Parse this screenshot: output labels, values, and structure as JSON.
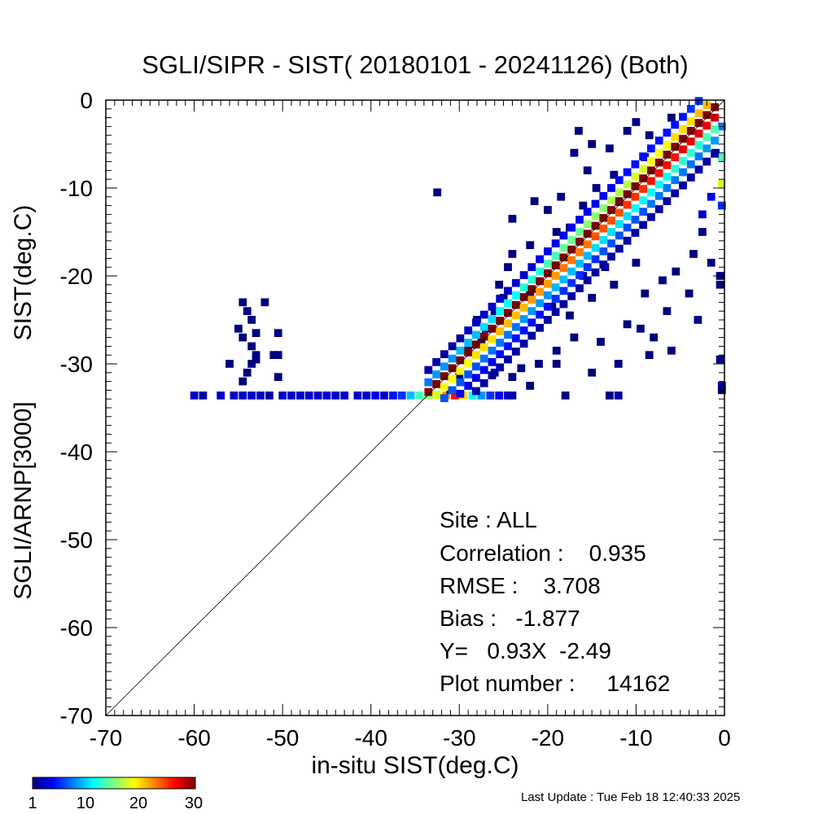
{
  "chart_data": {
    "type": "heatmap",
    "title": "SGLI/SIPR - SIST( 20180101 - 20241126) (Both)",
    "xlabel": "in-situ SIST(deg.C)",
    "ylabel_lines": [
      "SGLI/ARNP[3000]",
      "SIST(deg.C)"
    ],
    "xlim": [
      -70,
      0
    ],
    "ylim": [
      -70,
      0
    ],
    "x_ticks": [
      -70,
      -60,
      -50,
      -40,
      -30,
      -20,
      -10,
      0
    ],
    "y_ticks": [
      -70,
      -60,
      -50,
      -40,
      -30,
      -20,
      -10,
      0
    ],
    "x_tick_labels": [
      "-70",
      "-60",
      "-50",
      "-40",
      "-30",
      "-20",
      "-10",
      "0"
    ],
    "y_tick_labels": [
      "-70",
      "-60",
      "-50",
      "-40",
      "-30",
      "-20",
      "-10",
      "0"
    ],
    "reference_line": "y = x",
    "colorbar": {
      "min": 1,
      "max": 30,
      "ticks": [
        "1",
        "10",
        "20",
        "30"
      ],
      "colors": [
        "#00007f",
        "#0000ff",
        "#007fff",
        "#00ffff",
        "#7fff7f",
        "#ffff00",
        "#ff7f00",
        "#ff0000",
        "#7f0000"
      ]
    },
    "density_cells": [
      {
        "x": -60.0,
        "y": -33.6,
        "count": 3
      },
      {
        "x": -59.0,
        "y": -33.6,
        "count": 2
      },
      {
        "x": -57.0,
        "y": -33.6,
        "count": 3
      },
      {
        "x": -55.5,
        "y": -33.6,
        "count": 3
      },
      {
        "x": -54.5,
        "y": -33.6,
        "count": 3
      },
      {
        "x": -53.5,
        "y": -33.6,
        "count": 3
      },
      {
        "x": -52.5,
        "y": -33.6,
        "count": 3
      },
      {
        "x": -51.5,
        "y": -33.6,
        "count": 2
      },
      {
        "x": -50.0,
        "y": -33.6,
        "count": 3
      },
      {
        "x": -49.0,
        "y": -33.6,
        "count": 3
      },
      {
        "x": -48.0,
        "y": -33.6,
        "count": 3
      },
      {
        "x": -47.0,
        "y": -33.6,
        "count": 3
      },
      {
        "x": -46.0,
        "y": -33.6,
        "count": 3
      },
      {
        "x": -45.0,
        "y": -33.6,
        "count": 4
      },
      {
        "x": -44.0,
        "y": -33.6,
        "count": 3
      },
      {
        "x": -43.0,
        "y": -33.6,
        "count": 3
      },
      {
        "x": -41.5,
        "y": -33.6,
        "count": 3
      },
      {
        "x": -40.5,
        "y": -33.6,
        "count": 3
      },
      {
        "x": -39.5,
        "y": -33.6,
        "count": 4
      },
      {
        "x": -38.5,
        "y": -33.6,
        "count": 3
      },
      {
        "x": -37.5,
        "y": -33.6,
        "count": 5
      },
      {
        "x": -36.5,
        "y": -33.6,
        "count": 6
      },
      {
        "x": -35.5,
        "y": -33.6,
        "count": 10
      },
      {
        "x": -34.5,
        "y": -33.6,
        "count": 14
      },
      {
        "x": -33.5,
        "y": -33.6,
        "count": 16
      },
      {
        "x": -32.5,
        "y": -33.6,
        "count": 19
      },
      {
        "x": -31.5,
        "y": -33.6,
        "count": 22
      },
      {
        "x": -30.5,
        "y": -33.6,
        "count": 26
      },
      {
        "x": -29.5,
        "y": -33.6,
        "count": 20
      },
      {
        "x": -28.5,
        "y": -33.6,
        "count": 12
      },
      {
        "x": -27.5,
        "y": -33.6,
        "count": 9
      },
      {
        "x": -26.5,
        "y": -33.6,
        "count": 6
      },
      {
        "x": -25.5,
        "y": -33.6,
        "count": 4
      },
      {
        "x": -24.5,
        "y": -33.6,
        "count": 3
      },
      {
        "x": -24.0,
        "y": -33.6,
        "count": 2
      },
      {
        "x": -18.0,
        "y": -33.6,
        "count": 1
      },
      {
        "x": -13.0,
        "y": -33.6,
        "count": 1
      },
      {
        "x": -12.0,
        "y": -33.6,
        "count": 2
      },
      {
        "x": -54.5,
        "y": -23.0,
        "count": 1
      },
      {
        "x": -52.0,
        "y": -23.0,
        "count": 1
      },
      {
        "x": -54.0,
        "y": -24.0,
        "count": 1
      },
      {
        "x": -53.5,
        "y": -25.0,
        "count": 1
      },
      {
        "x": -55.0,
        "y": -26.0,
        "count": 1
      },
      {
        "x": -53.0,
        "y": -26.5,
        "count": 1
      },
      {
        "x": -54.5,
        "y": -27.0,
        "count": 1
      },
      {
        "x": -50.5,
        "y": -26.5,
        "count": 1
      },
      {
        "x": -53.5,
        "y": -28.0,
        "count": 1
      },
      {
        "x": -53.0,
        "y": -29.0,
        "count": 1
      },
      {
        "x": -51.0,
        "y": -29.0,
        "count": 1
      },
      {
        "x": -50.5,
        "y": -29.0,
        "count": 1
      },
      {
        "x": -56.0,
        "y": -30.0,
        "count": 1
      },
      {
        "x": -53.5,
        "y": -30.0,
        "count": 1
      },
      {
        "x": -53.0,
        "y": -29.5,
        "count": 1
      },
      {
        "x": -54.0,
        "y": -31.0,
        "count": 1
      },
      {
        "x": -50.5,
        "y": -31.5,
        "count": 1
      },
      {
        "x": -54.5,
        "y": -32.0,
        "count": 1
      },
      {
        "x": -32.5,
        "y": -10.5,
        "count": 1
      },
      {
        "x": -16.5,
        "y": -3.5,
        "count": 1
      },
      {
        "x": -21.5,
        "y": -11.5,
        "count": 1
      },
      {
        "x": -24.0,
        "y": -13.5,
        "count": 1
      },
      {
        "x": -22.0,
        "y": -16.5,
        "count": 1
      },
      {
        "x": -24.0,
        "y": -17.5,
        "count": 1
      },
      {
        "x": -24.5,
        "y": -19.0,
        "count": 1
      },
      {
        "x": -25.5,
        "y": -21.0,
        "count": 1
      },
      {
        "x": -22.0,
        "y": -22.0,
        "count": 1
      },
      {
        "x": -20.0,
        "y": -12.5,
        "count": 1
      },
      {
        "x": -18.5,
        "y": -11.0,
        "count": 1
      },
      {
        "x": -19.0,
        "y": -15.0,
        "count": 1
      },
      {
        "x": -15.0,
        "y": -5.0,
        "count": 1
      },
      {
        "x": -15.5,
        "y": -8.0,
        "count": 1
      },
      {
        "x": -13.0,
        "y": -5.5,
        "count": 1
      },
      {
        "x": -12.5,
        "y": -8.5,
        "count": 1
      },
      {
        "x": -11.0,
        "y": -3.5,
        "count": 1
      },
      {
        "x": -10.0,
        "y": -2.5,
        "count": 1
      },
      {
        "x": -17.0,
        "y": -6.0,
        "count": 1
      },
      {
        "x": -14.5,
        "y": -10.0,
        "count": 1
      },
      {
        "x": -16.0,
        "y": -12.0,
        "count": 1
      },
      {
        "x": -17.5,
        "y": -14.5,
        "count": 1
      },
      {
        "x": -12.0,
        "y": -11.5,
        "count": 1
      },
      {
        "x": -8.5,
        "y": -4.0,
        "count": 1
      },
      {
        "x": -6.0,
        "y": -2.0,
        "count": 1
      },
      {
        "x": -9.0,
        "y": -6.5,
        "count": 1
      },
      {
        "x": -28.0,
        "y": -25.0,
        "count": 1
      },
      {
        "x": -26.0,
        "y": -24.0,
        "count": 1
      },
      {
        "x": -27.5,
        "y": -27.5,
        "count": 1
      },
      {
        "x": -29.0,
        "y": -28.5,
        "count": 1
      },
      {
        "x": -30.0,
        "y": -31.5,
        "count": 1
      },
      {
        "x": -31.0,
        "y": -33.0,
        "count": 1
      },
      {
        "x": -26.0,
        "y": -31.0,
        "count": 2
      },
      {
        "x": -24.0,
        "y": -31.5,
        "count": 1
      },
      {
        "x": -22.0,
        "y": -32.5,
        "count": 1
      },
      {
        "x": -21.0,
        "y": -30.0,
        "count": 1
      },
      {
        "x": -23.0,
        "y": -30.5,
        "count": 1
      },
      {
        "x": -19.0,
        "y": -28.5,
        "count": 1
      },
      {
        "x": -17.0,
        "y": -27.0,
        "count": 1
      },
      {
        "x": -14.0,
        "y": -27.5,
        "count": 1
      },
      {
        "x": -11.0,
        "y": -25.5,
        "count": 1
      },
      {
        "x": -9.5,
        "y": -26.0,
        "count": 1
      },
      {
        "x": -8.0,
        "y": -27.0,
        "count": 1
      },
      {
        "x": -6.5,
        "y": -24.0,
        "count": 1
      },
      {
        "x": -9.0,
        "y": -22.0,
        "count": 1
      },
      {
        "x": -12.5,
        "y": -21.0,
        "count": 1
      },
      {
        "x": -15.0,
        "y": -22.5,
        "count": 1
      },
      {
        "x": -17.5,
        "y": -24.5,
        "count": 1
      },
      {
        "x": -19.5,
        "y": -23.5,
        "count": 1
      },
      {
        "x": -16.0,
        "y": -20.0,
        "count": 2
      },
      {
        "x": -13.5,
        "y": -19.0,
        "count": 1
      },
      {
        "x": -10.0,
        "y": -18.5,
        "count": 1
      },
      {
        "x": -7.0,
        "y": -20.5,
        "count": 1
      },
      {
        "x": -5.5,
        "y": -19.5,
        "count": 1
      },
      {
        "x": -4.0,
        "y": -22.0,
        "count": 1
      },
      {
        "x": -3.0,
        "y": -25.0,
        "count": 1
      },
      {
        "x": -3.5,
        "y": -17.5,
        "count": 1
      },
      {
        "x": -2.5,
        "y": -15.0,
        "count": 1
      },
      {
        "x": -1.5,
        "y": -18.5,
        "count": 1
      },
      {
        "x": -0.5,
        "y": -20.0,
        "count": 1
      },
      {
        "x": -0.5,
        "y": -21.0,
        "count": 1
      },
      {
        "x": -0.5,
        "y": -29.5,
        "count": 1
      },
      {
        "x": -0.3,
        "y": -32.5,
        "count": 2
      },
      {
        "x": -0.3,
        "y": -33.0,
        "count": 1
      },
      {
        "x": -15.0,
        "y": -31.0,
        "count": 1
      },
      {
        "x": -12.0,
        "y": -30.0,
        "count": 1
      },
      {
        "x": -8.5,
        "y": -29.0,
        "count": 1
      },
      {
        "x": -6.0,
        "y": -28.5,
        "count": 1
      },
      {
        "x": -19.0,
        "y": -30.0,
        "count": 1
      },
      {
        "x": -25.0,
        "y": -22.5,
        "count": 1
      },
      {
        "x": -27.0,
        "y": -26.0,
        "count": 2
      },
      {
        "x": -1.0,
        "y": -6.0,
        "count": 3
      },
      {
        "x": -0.3,
        "y": -3.0,
        "count": 8
      },
      {
        "x": -0.3,
        "y": -6.5,
        "count": 14
      },
      {
        "x": -0.3,
        "y": -9.5,
        "count": 18
      },
      {
        "x": -0.3,
        "y": -12.0,
        "count": 6
      },
      {
        "x": -1.5,
        "y": -11.0,
        "count": 4
      },
      {
        "x": -2.5,
        "y": -13.0,
        "count": 3
      }
    ]
  },
  "stats": {
    "site": "Site : ALL",
    "correlation": "Correlation :    0.935",
    "rmse": "RMSE :    3.708",
    "bias": "Bias :   -1.877",
    "fit": "Y=   0.93X  -2.49",
    "plot_number": "Plot number :     14162"
  },
  "footer": {
    "last_update": "Last Update : Tue Feb 18 12:40:33 2025"
  }
}
